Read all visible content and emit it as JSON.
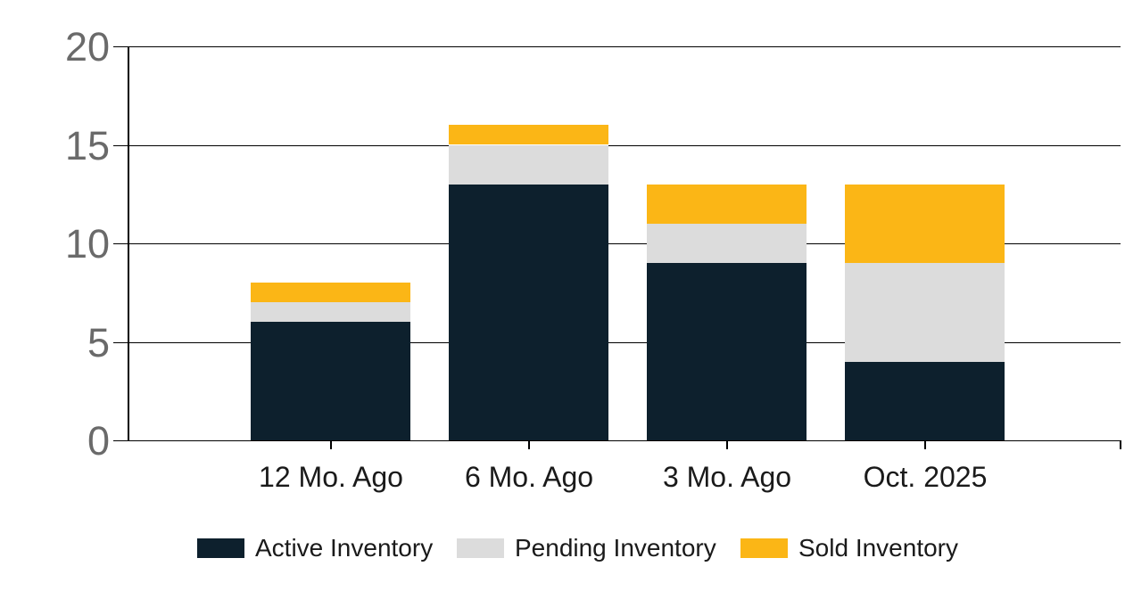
{
  "chart_data": {
    "type": "bar",
    "stacked": true,
    "title": "",
    "categories": [
      "12 Mo. Ago",
      "6 Mo. Ago",
      "3 Mo. Ago",
      "Oct. 2025"
    ],
    "series": [
      {
        "name": "Active Inventory",
        "color": "#0D202D",
        "values": [
          6,
          13,
          9,
          4
        ]
      },
      {
        "name": "Pending Inventory",
        "color": "#DCDCDC",
        "values": [
          1,
          2,
          2,
          5
        ]
      },
      {
        "name": "Sold Inventory",
        "color": "#FBB616",
        "values": [
          1,
          1,
          2,
          4
        ]
      }
    ],
    "stack_totals": [
      8,
      16,
      13,
      13
    ],
    "y_ticks": [
      "0",
      "5",
      "10",
      "15",
      "20"
    ],
    "y_tick_values": [
      0,
      5,
      10,
      15,
      20
    ],
    "ylim": [
      0,
      20
    ],
    "xlabel": "",
    "ylabel": "",
    "grid": true,
    "legend_position": "bottom",
    "colors": {
      "background": "#FFFFFF",
      "grid_line": "#000000",
      "axis_tick_label": "#6A6A6A",
      "category_label": "#1A1A1A",
      "legend_label": "#1A1A1A"
    }
  }
}
